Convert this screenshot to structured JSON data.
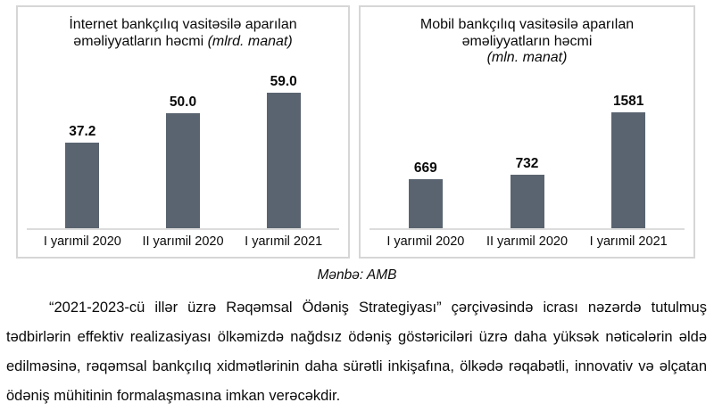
{
  "colors": {
    "bar": "#5a6470",
    "axis_line": "#dcdcdc",
    "box_border": "#d6d6d6",
    "text": "#0a0a0a",
    "background": "#ffffff"
  },
  "source_note": "Mənbə: AMB",
  "paragraph": "“2021-2023-cü illər üzrə Rəqəmsal Ödəniş Strategiyası” çərçivəsində icrası nəzərdə tutulmuş tədbirlərin effektiv realizasiyası ölkəmizdə nağdsız ödəniş göstəriciləri üzrə daha yüksək nəticələrin əldə edilməsinə, rəqəmsal bankçılıq xidmətlərinin daha sürətli inkişafına, ölkədə rəqabətli, innovativ və əlçatan ödəniş mühitinin formalaşmasına imkan verəcəkdir.",
  "chart_data": [
    {
      "type": "bar",
      "title": "İnternet bankçılıq vasitəsilə aparılan\nəməliyyatların həcmi",
      "unit": "(mlrd. manat)",
      "unit_on_new_line": false,
      "categories": [
        "I yarımil 2020",
        "II yarımil 2020",
        "I yarımil 2021"
      ],
      "values": [
        37.2,
        50.0,
        59.0
      ],
      "value_labels": [
        "37.2",
        "50.0",
        "59.0"
      ],
      "ylim": [
        0,
        62
      ],
      "xlabel": "",
      "ylabel": "",
      "grid": false,
      "legend": "none"
    },
    {
      "type": "bar",
      "title": "Mobil bankçılıq vasitəsilə aparılan\nəməliyyatların həcmi",
      "unit": "(mln. manat)",
      "unit_on_new_line": true,
      "categories": [
        "I yarımil 2020",
        "II yarımil 2020",
        "I yarımil 2021"
      ],
      "values": [
        669,
        732,
        1581
      ],
      "value_labels": [
        "669",
        "732",
        "1581"
      ],
      "ylim": [
        0,
        1950
      ],
      "xlabel": "",
      "ylabel": "",
      "grid": false,
      "legend": "none"
    }
  ]
}
